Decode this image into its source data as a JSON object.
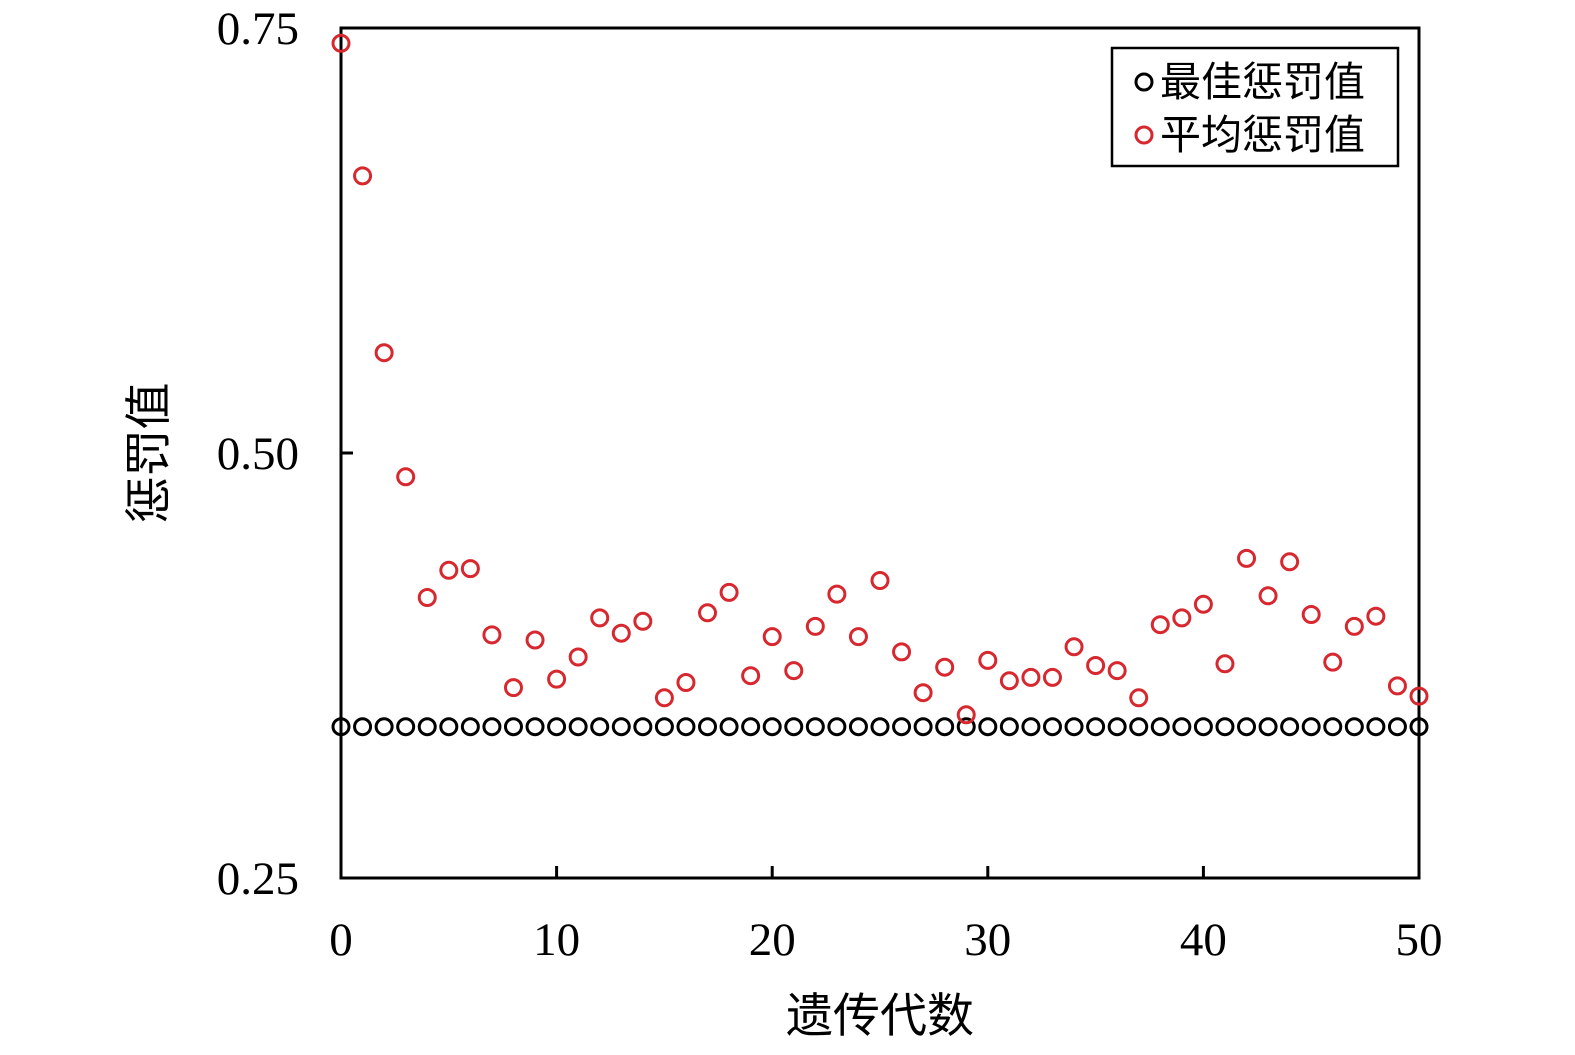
{
  "chart_data": {
    "type": "scatter",
    "title": "",
    "xlabel": "遗传代数",
    "ylabel": "惩罚值",
    "xlim": [
      0,
      50
    ],
    "ylim": [
      0.25,
      0.75
    ],
    "x_ticks": [
      0,
      10,
      20,
      30,
      40,
      50
    ],
    "x_tick_labels": [
      "0",
      "10",
      "20",
      "30",
      "40",
      "50"
    ],
    "y_ticks": [
      0.25,
      0.5,
      0.75
    ],
    "y_tick_labels": [
      "0.25",
      "0.50",
      "0.75"
    ],
    "grid": false,
    "legend_position": "top-right",
    "series": [
      {
        "name": "最佳惩罚值",
        "color": "#000000",
        "marker": "open-circle",
        "x": [
          0,
          1,
          2,
          3,
          4,
          5,
          6,
          7,
          8,
          9,
          10,
          11,
          12,
          13,
          14,
          15,
          16,
          17,
          18,
          19,
          20,
          21,
          22,
          23,
          24,
          25,
          26,
          27,
          28,
          29,
          30,
          31,
          32,
          33,
          34,
          35,
          36,
          37,
          38,
          39,
          40,
          41,
          42,
          43,
          44,
          45,
          46,
          47,
          48,
          49,
          50
        ],
        "y": [
          0.339,
          0.339,
          0.339,
          0.339,
          0.339,
          0.339,
          0.339,
          0.339,
          0.339,
          0.339,
          0.339,
          0.339,
          0.339,
          0.339,
          0.339,
          0.339,
          0.339,
          0.339,
          0.339,
          0.339,
          0.339,
          0.339,
          0.339,
          0.339,
          0.339,
          0.339,
          0.339,
          0.339,
          0.339,
          0.339,
          0.339,
          0.339,
          0.339,
          0.339,
          0.339,
          0.339,
          0.339,
          0.339,
          0.339,
          0.339,
          0.339,
          0.339,
          0.339,
          0.339,
          0.339,
          0.339,
          0.339,
          0.339,
          0.339,
          0.339,
          0.339
        ]
      },
      {
        "name": "平均惩罚值",
        "color": "#d7282f",
        "marker": "open-circle",
        "x": [
          0,
          1,
          2,
          3,
          4,
          5,
          6,
          7,
          8,
          9,
          10,
          11,
          12,
          13,
          14,
          15,
          16,
          17,
          18,
          19,
          20,
          21,
          22,
          23,
          24,
          25,
          26,
          27,
          28,
          29,
          30,
          31,
          32,
          33,
          34,
          35,
          36,
          37,
          38,
          39,
          40,
          41,
          42,
          43,
          44,
          45,
          46,
          47,
          48,
          49,
          50
        ],
        "y": [
          0.741,
          0.663,
          0.559,
          0.486,
          0.415,
          0.431,
          0.432,
          0.393,
          0.362,
          0.39,
          0.367,
          0.38,
          0.403,
          0.394,
          0.401,
          0.356,
          0.365,
          0.406,
          0.418,
          0.369,
          0.392,
          0.372,
          0.398,
          0.417,
          0.392,
          0.425,
          0.383,
          0.359,
          0.374,
          0.346,
          0.378,
          0.366,
          0.368,
          0.368,
          0.386,
          0.375,
          0.372,
          0.356,
          0.399,
          0.403,
          0.411,
          0.376,
          0.438,
          0.416,
          0.436,
          0.405,
          0.377,
          0.398,
          0.404,
          0.363,
          0.357
        ]
      }
    ]
  }
}
